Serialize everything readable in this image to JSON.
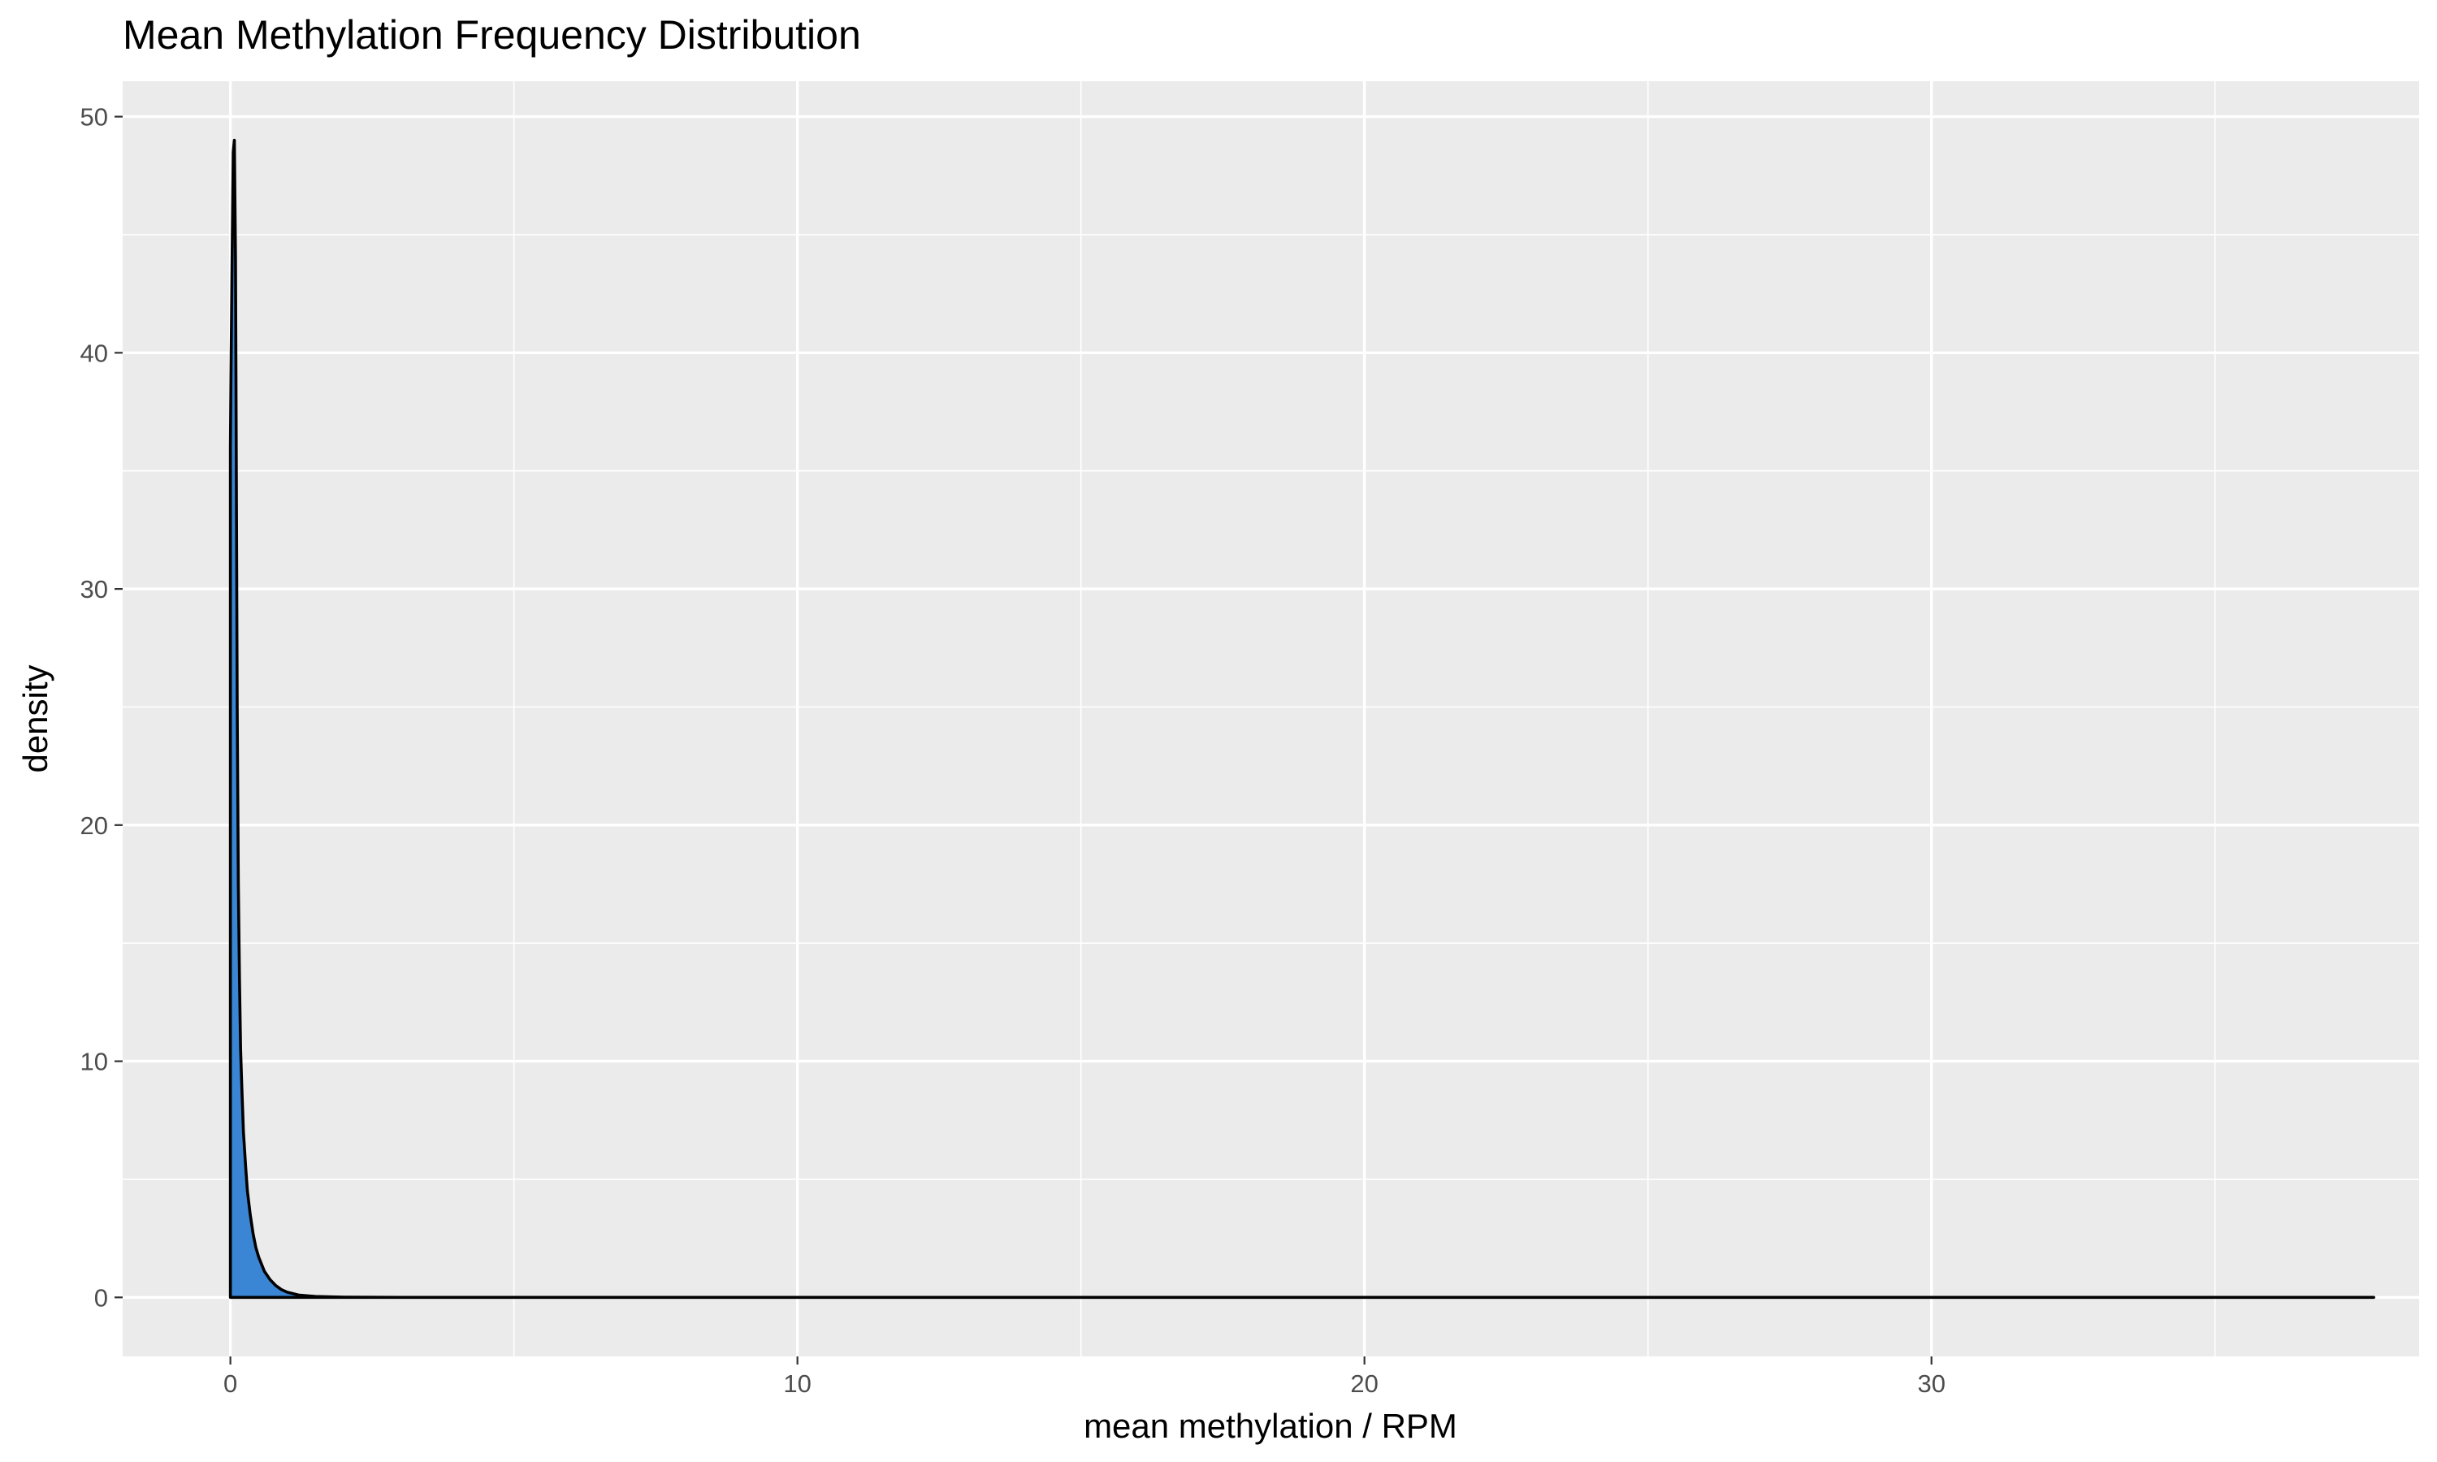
{
  "chart_data": {
    "type": "area",
    "title": "Mean Methylation Frequency Distribution",
    "xlabel": "mean methylation / RPM",
    "ylabel": "density",
    "xlim": [
      -1.9,
      38.6
    ],
    "ylim": [
      -2.5,
      51.5
    ],
    "x_ticks": [
      0,
      10,
      20,
      30
    ],
    "x_tick_labels": [
      "0",
      "10",
      "20",
      "30"
    ],
    "x_minor_ticks": [
      5,
      15,
      25,
      35
    ],
    "y_ticks": [
      0,
      10,
      20,
      30,
      40,
      50
    ],
    "y_tick_labels": [
      "0",
      "10",
      "20",
      "30",
      "40",
      "50"
    ],
    "y_minor_ticks": [
      5,
      15,
      25,
      35,
      45
    ],
    "grid": true,
    "legend": "none",
    "series": [
      {
        "fill": "#3a86d4",
        "stroke": "#000000",
        "x": [
          0.0,
          0.01,
          0.03,
          0.05,
          0.07,
          0.09,
          0.1,
          0.12,
          0.14,
          0.16,
          0.18,
          0.2,
          0.23,
          0.27,
          0.3,
          0.35,
          0.4,
          0.45,
          0.5,
          0.6,
          0.7,
          0.8,
          0.9,
          1.0,
          1.2,
          1.5,
          2.0,
          3.0,
          5.0,
          10.0,
          20.0,
          30.0,
          37.8
        ],
        "values": [
          36.0,
          39.0,
          44.0,
          48.5,
          49.0,
          44.0,
          38.0,
          25.0,
          17.5,
          13.5,
          10.5,
          9.0,
          7.0,
          5.5,
          4.5,
          3.5,
          2.7,
          2.1,
          1.7,
          1.1,
          0.75,
          0.5,
          0.33,
          0.22,
          0.1,
          0.04,
          0.01,
          0.0,
          0.0,
          0.0,
          0.0,
          0.0,
          0.0
        ]
      }
    ]
  }
}
